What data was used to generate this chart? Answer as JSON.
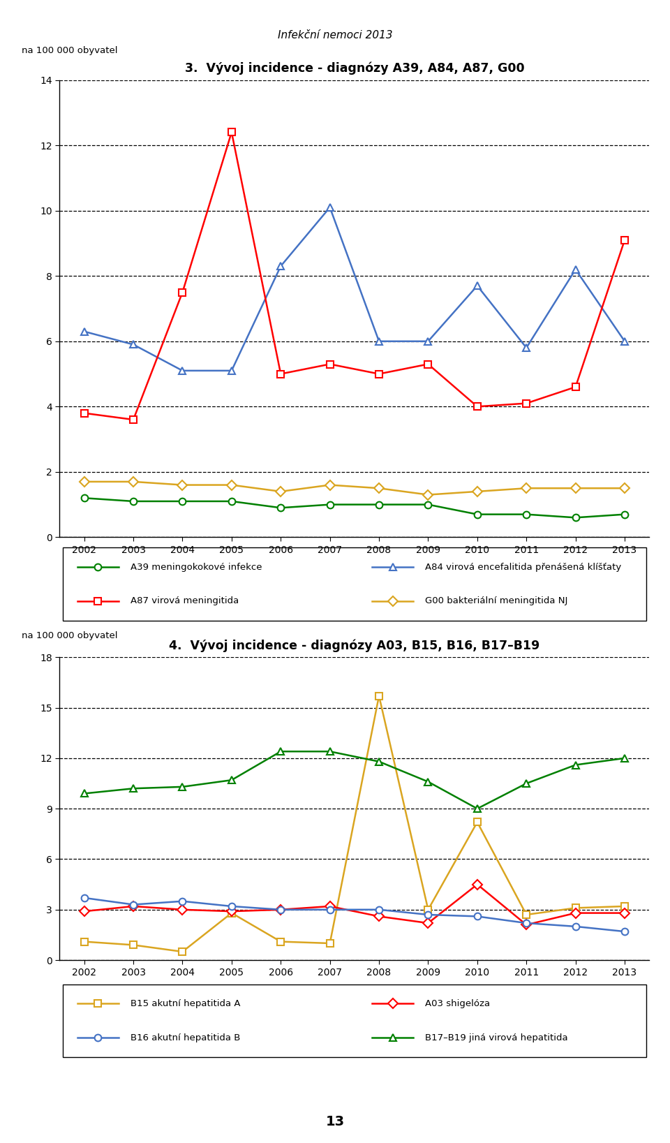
{
  "suptitle": "Infekční nemoci 2013",
  "page_number": "13",
  "chart1": {
    "title": "3.  Vývoj incidence - diagnózy A39, A84, A87, G00",
    "ylabel": "na 100 000 obyvatel",
    "years": [
      2002,
      2003,
      2004,
      2005,
      2006,
      2007,
      2008,
      2009,
      2010,
      2011,
      2012,
      2013
    ],
    "ylim": [
      0,
      14
    ],
    "yticks": [
      0,
      2,
      4,
      6,
      8,
      10,
      12,
      14
    ],
    "series": {
      "A39": {
        "label": "A39 meningokokové infekce",
        "color": "#008000",
        "marker": "o",
        "marker_fill": "white",
        "marker_edge": "#008000",
        "values": [
          1.2,
          1.1,
          1.1,
          1.1,
          0.9,
          1.0,
          1.0,
          1.0,
          0.7,
          0.7,
          0.6,
          0.7
        ]
      },
      "A84": {
        "label": "A84 virová encefalitida přenášená klíšťaty",
        "color": "#4472C4",
        "marker": "^",
        "marker_fill": "white",
        "marker_edge": "#4472C4",
        "values": [
          6.3,
          5.9,
          5.1,
          5.1,
          8.3,
          10.1,
          6.0,
          6.0,
          7.7,
          5.8,
          8.2,
          6.0
        ]
      },
      "A87": {
        "label": "A87 virová meningitida",
        "color": "#FF0000",
        "marker": "s",
        "marker_fill": "white",
        "marker_edge": "#FF0000",
        "values": [
          3.8,
          3.6,
          7.5,
          12.4,
          5.0,
          5.3,
          5.0,
          5.3,
          4.0,
          4.1,
          4.6,
          9.1
        ]
      },
      "G00": {
        "label": "G00 bakteriální meningitida NJ",
        "color": "#DAA520",
        "marker": "D",
        "marker_fill": "white",
        "marker_edge": "#DAA520",
        "values": [
          1.7,
          1.7,
          1.6,
          1.6,
          1.4,
          1.6,
          1.5,
          1.3,
          1.4,
          1.5,
          1.5,
          1.5
        ]
      }
    },
    "legend_order": [
      "A39",
      "A84",
      "A87",
      "G00"
    ]
  },
  "chart2": {
    "title": "4.  Vývoj incidence - diagnózy A03, B15, B16, B17–B19",
    "ylabel": "na 100 000 obyvatel",
    "years": [
      2002,
      2003,
      2004,
      2005,
      2006,
      2007,
      2008,
      2009,
      2010,
      2011,
      2012,
      2013
    ],
    "ylim": [
      0,
      18
    ],
    "yticks": [
      0,
      3,
      6,
      9,
      12,
      15,
      18
    ],
    "series": {
      "B15": {
        "label": "B15 akutní hepatitida A",
        "color": "#DAA520",
        "marker": "s",
        "marker_fill": "white",
        "marker_edge": "#DAA520",
        "values": [
          1.1,
          0.9,
          0.5,
          2.8,
          1.1,
          1.0,
          15.7,
          3.0,
          8.2,
          2.7,
          3.1,
          3.2
        ]
      },
      "A03": {
        "label": "A03 shigelóza",
        "color": "#FF0000",
        "marker": "D",
        "marker_fill": "white",
        "marker_edge": "#FF0000",
        "values": [
          2.9,
          3.2,
          3.0,
          2.9,
          3.0,
          3.2,
          2.6,
          2.2,
          4.5,
          2.1,
          2.8,
          2.8
        ]
      },
      "B16": {
        "label": "B16 akutní hepatitida B",
        "color": "#4472C4",
        "marker": "o",
        "marker_fill": "white",
        "marker_edge": "#4472C4",
        "values": [
          3.7,
          3.3,
          3.5,
          3.2,
          3.0,
          3.0,
          3.0,
          2.7,
          2.6,
          2.2,
          2.0,
          1.7
        ]
      },
      "B17": {
        "label": "B17–B19 jiná virová hepatitida",
        "color": "#008000",
        "marker": "^",
        "marker_fill": "white",
        "marker_edge": "#008000",
        "values": [
          9.9,
          10.2,
          10.3,
          10.7,
          12.4,
          12.4,
          11.8,
          10.6,
          9.0,
          10.5,
          11.6,
          12.0
        ]
      }
    },
    "legend_order": [
      "B15",
      "A03",
      "B16",
      "B17"
    ]
  }
}
